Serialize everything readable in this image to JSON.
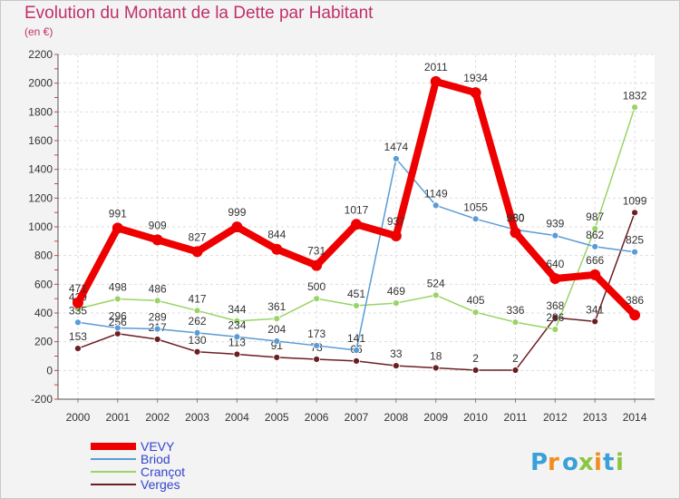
{
  "logo": {
    "text": "Proxiti"
  },
  "chart_data": {
    "type": "line",
    "title": "Evolution du Montant de la Dette par Habitant",
    "subtitle": "(en €)",
    "xlabel": "",
    "ylabel": "",
    "ylim": [
      -200,
      2200
    ],
    "yticks": [
      -200,
      0,
      200,
      400,
      600,
      800,
      1000,
      1200,
      1400,
      1600,
      1800,
      2000,
      2200
    ],
    "grid": true,
    "legend_position": "bottom-left",
    "categories": [
      "2000",
      "2001",
      "2002",
      "2003",
      "2004",
      "2005",
      "2006",
      "2007",
      "2008",
      "2009",
      "2010",
      "2011",
      "2012",
      "2013",
      "2014"
    ],
    "series": [
      {
        "name": "VEVY",
        "color": "#ee0000",
        "values": [
          471,
          991,
          909,
          827,
          999,
          844,
          731,
          1017,
          937,
          2011,
          1934,
          960,
          640,
          666,
          386
        ]
      },
      {
        "name": "Briod",
        "color": "#5b9bd5",
        "values": [
          335,
          296,
          289,
          262,
          234,
          204,
          173,
          141,
          1474,
          1149,
          1055,
          980,
          939,
          862,
          825
        ]
      },
      {
        "name": "Crançot",
        "color": "#99d466",
        "values": [
          429,
          498,
          486,
          417,
          344,
          361,
          500,
          451,
          469,
          524,
          405,
          336,
          286,
          987,
          1832
        ]
      },
      {
        "name": "Verges",
        "color": "#6b1e24",
        "values": [
          153,
          256,
          217,
          130,
          113,
          91,
          78,
          66,
          33,
          18,
          2,
          2,
          368,
          341,
          1099
        ]
      }
    ]
  }
}
